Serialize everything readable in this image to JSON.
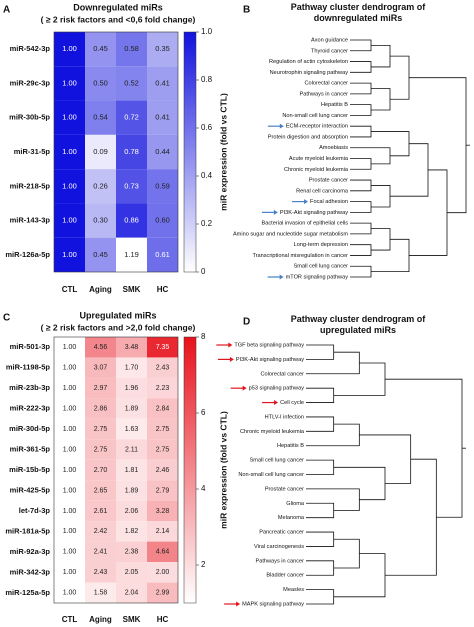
{
  "chart_data": [
    {
      "type": "heatmap",
      "panel": "A",
      "title": "Downregulated miRs",
      "subtitle": "( ≥ 2 risk factors and <0,6 fold change)",
      "rows": [
        "miR-542-3p",
        "miR-29c-3p",
        "miR-30b-5p",
        "miR-31-5p",
        "miR-218-5p",
        "miR-143-3p",
        "miR-126a-5p"
      ],
      "columns": [
        "CTL",
        "Aging",
        "SMK",
        "HC"
      ],
      "values": [
        [
          1,
          0.45,
          0.58,
          0.35
        ],
        [
          1,
          0.5,
          0.52,
          0.41
        ],
        [
          1,
          0.54,
          0.72,
          0.41
        ],
        [
          1,
          0.09,
          0.78,
          0.44
        ],
        [
          1,
          0.26,
          0.73,
          0.59
        ],
        [
          1,
          0.3,
          0.86,
          0.6
        ],
        [
          1,
          0.45,
          1.19,
          0.61
        ]
      ],
      "value_labels": [
        [
          "1.00",
          "0.45",
          "0.58",
          "0.35"
        ],
        [
          "1.00",
          "0.50",
          "0.52",
          "0.41"
        ],
        [
          "1.00",
          "0.54",
          "0.72",
          "0.41"
        ],
        [
          "1.00",
          "0.09",
          "0.78",
          "0.44"
        ],
        [
          "1.00",
          "0.26",
          "0.73",
          "0.59"
        ],
        [
          "1.00",
          "0.30",
          "0.86",
          "0.60"
        ],
        [
          "1.00",
          "0.45",
          "1.19",
          "0.61"
        ]
      ],
      "colorbar_label": "miR expression (fold vs CTL)",
      "ylim": [
        0,
        1
      ],
      "yticks": [
        0,
        0.2,
        0.4,
        0.6,
        0.8,
        {
          "value": 1,
          "label": "1.0"
        }
      ],
      "colors": [
        "#ffffff",
        "#1212de"
      ]
    },
    {
      "type": "dendrogram",
      "panel": "B",
      "title": "Pathway cluster dendrogram of downregulated miRs",
      "leaves": [
        "Axon guidance",
        "Thyroid cancer",
        "Regulation of actin cytoskeleton",
        "Neurotrophin signaling pathway",
        "Colorectal cancer",
        "Pathways in cancer",
        "Hepatitis B",
        "Non-small cell lung cancer",
        "ECM-receptor interaction",
        "Protein digestion and absorption",
        "Amoebiasis",
        "Acute myeloid leukemia",
        "Chronic myeloid leukemia",
        "Prostate cancer",
        "Renal cell carcinoma",
        "Focal adhesion",
        "PI3K-Akt signaling pathway",
        "Bacterial invasion of epithelial cells",
        "Amino sugar and nucleotide sugar metabolism",
        "Long-term depression",
        "Transcriptional misregulation in cancer",
        "Small cell lung cancer",
        "mTOR signaling pathway"
      ],
      "arrow_color": "#4a7fc8"
    },
    {
      "type": "heatmap",
      "panel": "C",
      "title": "Upregulated miRs",
      "subtitle": "( ≥ 2 risk factors and >2,0 fold change)",
      "rows": [
        "miR-501-3p",
        "miR-1198-5p",
        "miR-23b-3p",
        "miR-222-3p",
        "miR-30d-5p",
        "miR-361-5p",
        "miR-15b-5p",
        "miR-425-5p",
        "let-7d-3p",
        "miR-181a-5p",
        "miR-92a-3p",
        "miR-342-3p",
        "miR-125a-5p"
      ],
      "columns": [
        "CTL",
        "Aging",
        "SMK",
        "HC"
      ],
      "values": [
        [
          1,
          4.56,
          3.48,
          7.35
        ],
        [
          1,
          3.07,
          1.7,
          2.43
        ],
        [
          1,
          2.97,
          1.96,
          2.23
        ],
        [
          1,
          2.86,
          1.89,
          2.84
        ],
        [
          1,
          2.75,
          1.63,
          2.75
        ],
        [
          1,
          2.75,
          2.11,
          2.75
        ],
        [
          1,
          2.7,
          1.81,
          2.46
        ],
        [
          1,
          2.65,
          1.89,
          2.79
        ],
        [
          1,
          2.61,
          2.06,
          3.28
        ],
        [
          1,
          2.42,
          1.82,
          2.14
        ],
        [
          1,
          2.41,
          2.38,
          4.64
        ],
        [
          1,
          2.43,
          2.05,
          2
        ],
        [
          1,
          1.58,
          2.04,
          2.99
        ]
      ],
      "value_labels": [
        [
          "1.00",
          "4.56",
          "3.48",
          "7.35"
        ],
        [
          "1.00",
          "3.07",
          "1.70",
          "2.43"
        ],
        [
          "1.00",
          "2.97",
          "1.96",
          "2.23"
        ],
        [
          "1.00",
          "2.86",
          "1.89",
          "2.84"
        ],
        [
          "1.00",
          "2.75",
          "1.63",
          "2.75"
        ],
        [
          "1.00",
          "2.75",
          "2.11",
          "2.75"
        ],
        [
          "1.00",
          "2.70",
          "1.81",
          "2.46"
        ],
        [
          "1.00",
          "2.65",
          "1.89",
          "2.79"
        ],
        [
          "1.00",
          "2.61",
          "2.06",
          "3.28"
        ],
        [
          "1.00",
          "2.42",
          "1.82",
          "2.14"
        ],
        [
          "1.00",
          "2.41",
          "2.38",
          "4.64"
        ],
        [
          "1.00",
          "2.43",
          "2.05",
          "2.00"
        ],
        [
          "1.00",
          "1.58",
          "2.04",
          "2.99"
        ]
      ],
      "colorbar_label": "miR expression (fold vs CTL)",
      "ylim": [
        1,
        8
      ],
      "yticks": [
        2,
        4,
        6,
        8
      ],
      "colors": [
        "#ffffff",
        "#e8121c"
      ]
    },
    {
      "type": "dendrogram",
      "panel": "D",
      "title": "Pathway cluster dendrogram of upregulated miRs",
      "leaves": [
        "TGF beta signaling pathway",
        "PI3K-Akt signaling pathway",
        "Colorectal cancer",
        "p53 signaling pathway",
        "Cell cycle",
        "HTLV-I infection",
        "Chronic myeloid leukemia",
        "Hepatitis B",
        "Small cell lung cancer",
        "Non-small cell lung cancer",
        "Prostate cancer",
        "Glioma",
        "Melanoma",
        "Pancreatic cancer",
        "Viral carcinogenesis",
        "Pathways in cancer",
        "Bladder cancer",
        "Measles",
        "MAPK signaling pathway"
      ],
      "arrow_color": "#e0161e"
    }
  ]
}
